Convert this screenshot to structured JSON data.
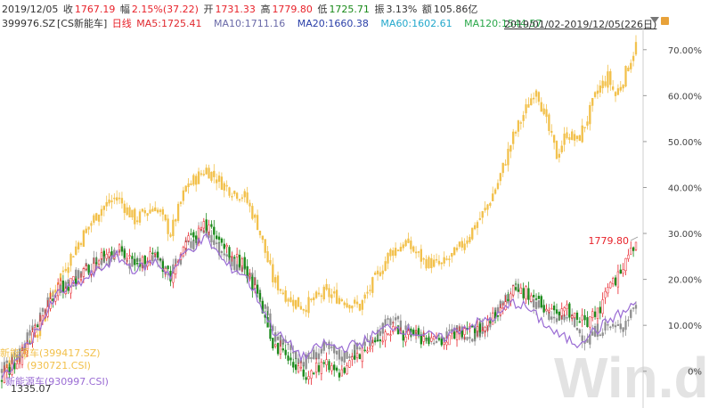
{
  "header": {
    "date": "2019/12/05",
    "close_label": "收",
    "close": "1767.19",
    "change_label": "幅",
    "change": "2.15%(37.22)",
    "open_label": "开",
    "open": "1731.33",
    "high_label": "高",
    "high": "1779.80",
    "low_label": "低",
    "low": "1725.71",
    "amp_label": "振",
    "amp": "3.13%",
    "amount_label": "额",
    "amount": "105.86亿"
  },
  "subheader": {
    "code": "399976.SZ",
    "name": "[CS新能车]",
    "period": "日线",
    "ma5": "MA5:1725.41",
    "ma10": "MA10:1711.16",
    "ma20": "MA20:1660.38",
    "ma60": "MA60:1602.61",
    "ma120": "MA120:1544.57",
    "range": "2019/01/02-2019/12/05(226日)"
  },
  "colors": {
    "up": "#e8222a",
    "down": "#1a8a1a",
    "gold": "#f2c04a",
    "gray": "#8f8f8f",
    "purple": "#9a6cd4",
    "ma5": "#e0282e",
    "ma10": "#6a6aa8",
    "ma20": "#2a3fa8",
    "ma60": "#23a8cc",
    "ma120": "#2aa84a"
  },
  "watermark": "Win.d",
  "chart_data": {
    "type": "candlestick",
    "x_range": [
      "2019/01/02",
      "2019/12/05"
    ],
    "trading_days": 226,
    "y_axis": {
      "side": "right",
      "unit": "%",
      "ylim": [
        -8,
        75
      ],
      "ticks": [
        0,
        10,
        20,
        30,
        40,
        50,
        60,
        70
      ]
    },
    "max_label": "1779.80",
    "min_label": "1335.07",
    "series": [
      {
        "name": "新能源车(399417.SZ)",
        "style": "candle-gold",
        "keypoints": [
          [
            0,
            0
          ],
          [
            8,
            5
          ],
          [
            15,
            10
          ],
          [
            22,
            20
          ],
          [
            30,
            28
          ],
          [
            38,
            35
          ],
          [
            45,
            38
          ],
          [
            52,
            33
          ],
          [
            60,
            36
          ],
          [
            66,
            30
          ],
          [
            72,
            40
          ],
          [
            80,
            44
          ],
          [
            88,
            40
          ],
          [
            95,
            38
          ],
          [
            100,
            32
          ],
          [
            106,
            20
          ],
          [
            112,
            16
          ],
          [
            118,
            14
          ],
          [
            126,
            17
          ],
          [
            132,
            16
          ],
          [
            140,
            14
          ],
          [
            146,
            20
          ],
          [
            152,
            26
          ],
          [
            158,
            28
          ],
          [
            165,
            24
          ],
          [
            172,
            23
          ],
          [
            178,
            26
          ],
          [
            183,
            30
          ],
          [
            189,
            35
          ],
          [
            194,
            41
          ],
          [
            200,
            51
          ],
          [
            205,
            57
          ],
          [
            209,
            62
          ],
          [
            213,
            54
          ],
          [
            217,
            47
          ],
          [
            221,
            52
          ],
          [
            225,
            50
          ],
          [
            229,
            55
          ],
          [
            233,
            61
          ],
          [
            237,
            64
          ],
          [
            240,
            60
          ],
          [
            244,
            65
          ],
          [
            248,
            71
          ]
        ]
      },
      {
        "name": "(930721.CSI)",
        "style": "candle-gray",
        "keypoints": [
          [
            0,
            0
          ],
          [
            8,
            5
          ],
          [
            15,
            12
          ],
          [
            22,
            18
          ],
          [
            30,
            21
          ],
          [
            38,
            24
          ],
          [
            45,
            26
          ],
          [
            52,
            23
          ],
          [
            60,
            25
          ],
          [
            66,
            21
          ],
          [
            72,
            27
          ],
          [
            80,
            31
          ],
          [
            88,
            24
          ],
          [
            95,
            22
          ],
          [
            100,
            17
          ],
          [
            106,
            8
          ],
          [
            112,
            5
          ],
          [
            118,
            2
          ],
          [
            126,
            5
          ],
          [
            132,
            3
          ],
          [
            140,
            5
          ],
          [
            146,
            8
          ],
          [
            152,
            11
          ],
          [
            158,
            9
          ],
          [
            165,
            8
          ],
          [
            172,
            7
          ],
          [
            178,
            9
          ],
          [
            183,
            8
          ],
          [
            189,
            10
          ],
          [
            194,
            13
          ],
          [
            200,
            18
          ],
          [
            205,
            16
          ],
          [
            209,
            15
          ],
          [
            213,
            12
          ],
          [
            217,
            11
          ],
          [
            221,
            12
          ],
          [
            225,
            9
          ],
          [
            229,
            7
          ],
          [
            233,
            9
          ],
          [
            237,
            10
          ],
          [
            240,
            9
          ],
          [
            244,
            11
          ],
          [
            248,
            15
          ]
        ]
      },
      {
        "name": "新能源车(930997.CSI)",
        "style": "line-purple",
        "keypoints": [
          [
            0,
            -2
          ],
          [
            8,
            4
          ],
          [
            15,
            10
          ],
          [
            22,
            17
          ],
          [
            30,
            19
          ],
          [
            38,
            22
          ],
          [
            45,
            25
          ],
          [
            52,
            22
          ],
          [
            60,
            24
          ],
          [
            66,
            21
          ],
          [
            72,
            26
          ],
          [
            80,
            29
          ],
          [
            88,
            23
          ],
          [
            95,
            21
          ],
          [
            100,
            16
          ],
          [
            106,
            9
          ],
          [
            112,
            6
          ],
          [
            118,
            3
          ],
          [
            126,
            6
          ],
          [
            132,
            5
          ],
          [
            140,
            6
          ],
          [
            146,
            8
          ],
          [
            152,
            10
          ],
          [
            158,
            9
          ],
          [
            165,
            8
          ],
          [
            172,
            7
          ],
          [
            178,
            9
          ],
          [
            183,
            10
          ],
          [
            189,
            11
          ],
          [
            194,
            12
          ],
          [
            200,
            15
          ],
          [
            205,
            14
          ],
          [
            209,
            12
          ],
          [
            213,
            10
          ],
          [
            217,
            8
          ],
          [
            221,
            7
          ],
          [
            225,
            6
          ],
          [
            229,
            8
          ],
          [
            233,
            9
          ],
          [
            237,
            11
          ],
          [
            240,
            12
          ],
          [
            244,
            13
          ],
          [
            248,
            15
          ]
        ]
      },
      {
        "name": "CS新能车(399976.SZ)",
        "style": "candle-redgreen",
        "keypoints": [
          [
            0,
            -2
          ],
          [
            8,
            4
          ],
          [
            15,
            10
          ],
          [
            22,
            18
          ],
          [
            30,
            20
          ],
          [
            38,
            24
          ],
          [
            45,
            27
          ],
          [
            52,
            23
          ],
          [
            60,
            25
          ],
          [
            66,
            21
          ],
          [
            72,
            28
          ],
          [
            80,
            32
          ],
          [
            88,
            26
          ],
          [
            95,
            23
          ],
          [
            100,
            16
          ],
          [
            106,
            6
          ],
          [
            112,
            3
          ],
          [
            118,
            -1
          ],
          [
            126,
            2
          ],
          [
            132,
            0
          ],
          [
            140,
            3
          ],
          [
            146,
            7
          ],
          [
            152,
            9
          ],
          [
            158,
            8
          ],
          [
            165,
            7
          ],
          [
            172,
            6
          ],
          [
            178,
            8
          ],
          [
            183,
            9
          ],
          [
            189,
            10
          ],
          [
            194,
            13
          ],
          [
            200,
            18
          ],
          [
            205,
            17
          ],
          [
            209,
            15
          ],
          [
            213,
            14
          ],
          [
            217,
            12
          ],
          [
            221,
            13
          ],
          [
            225,
            11
          ],
          [
            229,
            11
          ],
          [
            233,
            13
          ],
          [
            237,
            17
          ],
          [
            240,
            20
          ],
          [
            244,
            24
          ],
          [
            248,
            27
          ]
        ]
      }
    ]
  }
}
